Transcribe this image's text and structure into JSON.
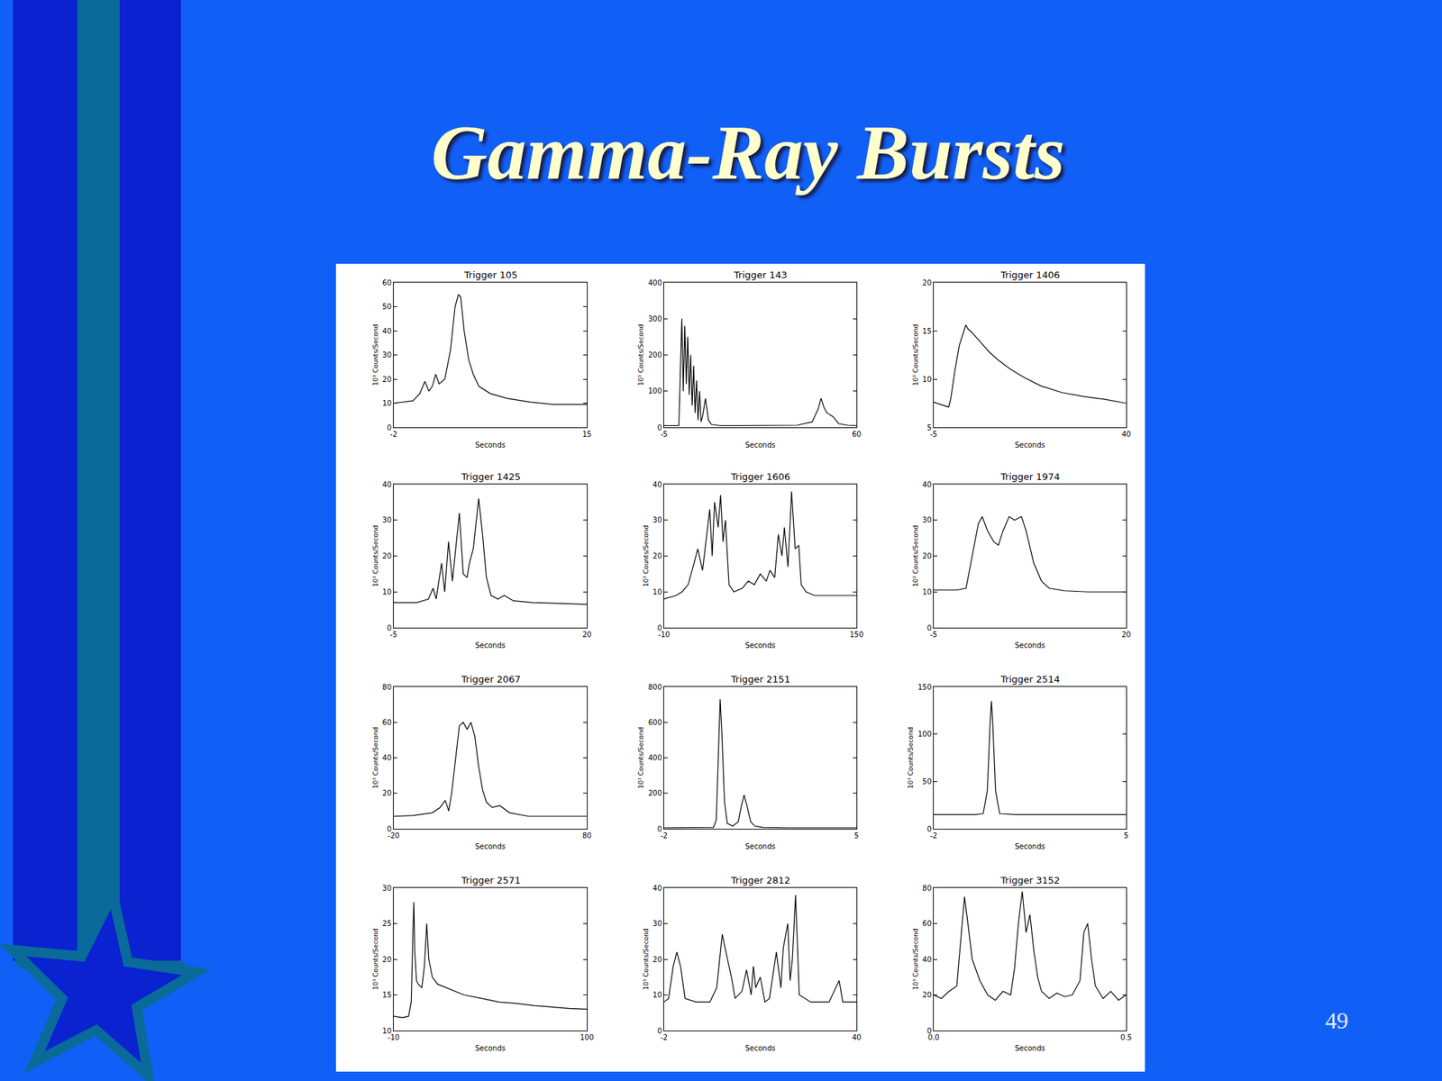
{
  "title": "Gamma-Ray Bursts",
  "page_number": "49",
  "chart_data": [
    {
      "type": "line",
      "title": "Trigger 105",
      "x_label": "Seconds",
      "y_label": "10³ Counts/Second",
      "x": [
        -2,
        -1,
        -0.3,
        0.3,
        0.75,
        1.1,
        1.4,
        1.7,
        2.0,
        2.5,
        3.0,
        3.4,
        3.7,
        3.9,
        4.2,
        4.6,
        5.0,
        5.5,
        6.5,
        8,
        10,
        12,
        15
      ],
      "values": [
        10,
        10.5,
        11,
        14,
        19,
        15,
        17,
        22,
        18,
        20,
        32,
        50,
        55,
        54,
        40,
        28,
        22,
        17,
        14,
        12,
        10.5,
        9.5,
        9.5
      ],
      "xlim": [
        -2,
        15
      ],
      "xticks": [
        -2,
        15
      ],
      "ylim": [
        0,
        60
      ],
      "yticks": [
        0,
        10,
        20,
        30,
        40,
        50,
        60
      ],
      "color": "#000000"
    },
    {
      "type": "line",
      "title": "Trigger 143",
      "x_label": "Seconds",
      "y_label": "10³ Counts/Second",
      "x": [
        -5,
        0,
        0.5,
        1,
        1.5,
        2,
        2.5,
        3,
        3.5,
        4,
        4.5,
        5,
        5.5,
        6,
        6.5,
        7,
        7.5,
        8,
        9,
        10,
        11,
        14,
        20,
        30,
        40,
        45,
        47,
        48,
        49,
        50,
        52,
        54,
        57,
        60
      ],
      "values": [
        5,
        5,
        150,
        300,
        100,
        280,
        120,
        250,
        90,
        200,
        60,
        170,
        40,
        130,
        20,
        100,
        15,
        30,
        80,
        20,
        8,
        5,
        5,
        5,
        6,
        15,
        50,
        80,
        55,
        40,
        30,
        10,
        6,
        5
      ],
      "xlim": [
        -5,
        60
      ],
      "xticks": [
        -5,
        60
      ],
      "ylim": [
        0,
        400
      ],
      "yticks": [
        0,
        100,
        200,
        300,
        400
      ],
      "color": "#000000"
    },
    {
      "type": "line",
      "title": "Trigger 1406",
      "x_label": "Seconds",
      "y_label": "10³ Counts/Second",
      "x": [
        -5,
        -3,
        -1.5,
        -1,
        0,
        1,
        2,
        2.5,
        3,
        4,
        6,
        8,
        10,
        13,
        16,
        20,
        25,
        30,
        35,
        40
      ],
      "values": [
        7.6,
        7.3,
        7.1,
        8,
        11,
        13.5,
        15,
        15.6,
        15.2,
        14.8,
        13.8,
        12.8,
        12,
        11,
        10.2,
        9.3,
        8.6,
        8.2,
        7.9,
        7.5
      ],
      "xlim": [
        -5,
        40
      ],
      "xticks": [
        -5,
        40
      ],
      "ylim": [
        5,
        20
      ],
      "yticks": [
        5,
        10,
        15,
        20
      ],
      "color": "#000000"
    },
    {
      "type": "line",
      "title": "Trigger 1425",
      "x_label": "Seconds",
      "y_label": "10³ Counts/Second",
      "x": [
        -5,
        -2,
        -0.5,
        0.1,
        0.5,
        1.2,
        1.6,
        2.1,
        2.6,
        3.5,
        4.0,
        4.5,
        4.8,
        5.3,
        6.0,
        6.5,
        7.0,
        7.6,
        8.5,
        9.3,
        10.5,
        13,
        16,
        20
      ],
      "values": [
        7,
        7,
        8,
        11,
        8,
        18,
        10,
        24,
        13,
        32,
        15,
        14,
        18,
        22,
        36,
        26,
        14,
        9,
        8,
        9,
        7.5,
        7,
        6.8,
        6.5
      ],
      "xlim": [
        -5,
        20
      ],
      "xticks": [
        -5,
        20
      ],
      "ylim": [
        0,
        40
      ],
      "yticks": [
        0,
        10,
        20,
        30,
        40
      ],
      "color": "#000000"
    },
    {
      "type": "line",
      "title": "Trigger 1606",
      "x_label": "Seconds",
      "y_label": "10³ Counts/Second",
      "x": [
        -10,
        0,
        5,
        10,
        15,
        18,
        22,
        25,
        28,
        30,
        32,
        35,
        37,
        39,
        41,
        44,
        48,
        55,
        60,
        65,
        70,
        75,
        78,
        82,
        85,
        88,
        90,
        93,
        96,
        99,
        102,
        104,
        108,
        115,
        125,
        140,
        150
      ],
      "values": [
        8,
        9,
        10,
        12,
        18,
        22,
        16,
        25,
        33,
        20,
        35,
        28,
        37,
        24,
        30,
        12,
        10,
        11,
        13,
        12,
        15,
        13,
        16,
        14,
        26,
        20,
        28,
        17,
        38,
        22,
        23,
        12,
        10,
        9,
        9,
        9,
        9
      ],
      "xlim": [
        -10,
        150
      ],
      "xticks": [
        -10,
        150
      ],
      "ylim": [
        0,
        40
      ],
      "yticks": [
        0,
        10,
        20,
        30,
        40
      ],
      "color": "#000000"
    },
    {
      "type": "line",
      "title": "Trigger 1974",
      "x_label": "Seconds",
      "y_label": "10³ Counts/Second",
      "x": [
        -5,
        -2,
        -0.8,
        0,
        0.8,
        1.3,
        2,
        2.8,
        3.4,
        4,
        4.8,
        5.5,
        6.4,
        7,
        8,
        9,
        10,
        12,
        15,
        20
      ],
      "values": [
        10.5,
        10.5,
        11,
        20,
        29,
        31,
        27,
        24,
        23,
        27,
        31,
        30,
        31,
        27,
        18,
        13,
        11,
        10.3,
        10,
        10
      ],
      "xlim": [
        -5,
        20
      ],
      "xticks": [
        -5,
        20
      ],
      "ylim": [
        0,
        40
      ],
      "yticks": [
        0,
        10,
        20,
        30,
        40
      ],
      "color": "#000000"
    },
    {
      "type": "line",
      "title": "Trigger 2067",
      "x_label": "Seconds",
      "y_label": "10³ Counts/Second",
      "x": [
        -20,
        -10,
        0,
        4,
        6.7,
        8.5,
        10,
        12,
        14,
        16,
        18,
        20,
        22,
        24,
        26,
        28,
        31,
        35,
        40,
        50,
        65,
        80
      ],
      "values": [
        7,
        7.5,
        9,
        12,
        16,
        10,
        20,
        40,
        58,
        60,
        56,
        60,
        52,
        35,
        22,
        15,
        12,
        13,
        9,
        7,
        7,
        7
      ],
      "xlim": [
        -20,
        80
      ],
      "xticks": [
        -20,
        80
      ],
      "ylim": [
        0,
        80
      ],
      "yticks": [
        0,
        20,
        40,
        60,
        80
      ],
      "color": "#000000"
    },
    {
      "type": "line",
      "title": "Trigger 2151",
      "x_label": "Seconds",
      "y_label": "10³ Counts/Second",
      "x": [
        -2,
        -0.5,
        -0.2,
        -0.1,
        0,
        0.04,
        0.1,
        0.2,
        0.3,
        0.5,
        0.7,
        0.8,
        0.91,
        1.0,
        1.15,
        1.3,
        1.6,
        2.5,
        5
      ],
      "values": [
        5,
        5,
        8,
        50,
        500,
        730,
        550,
        150,
        30,
        15,
        40,
        120,
        190,
        140,
        40,
        15,
        8,
        5,
        5
      ],
      "xlim": [
        -2,
        5
      ],
      "xticks": [
        -2,
        5
      ],
      "ylim": [
        0,
        800
      ],
      "yticks": [
        0,
        200,
        400,
        600,
        800
      ],
      "color": "#000000"
    },
    {
      "type": "line",
      "title": "Trigger 2514",
      "x_label": "Seconds",
      "y_label": "10³ Counts/Second",
      "x": [
        -2,
        -0.5,
        -0.2,
        -0.05,
        0.05,
        0.1,
        0.15,
        0.25,
        0.4,
        1,
        2,
        3,
        4,
        5
      ],
      "values": [
        15,
        15,
        16,
        40,
        110,
        135,
        110,
        40,
        16,
        15,
        15,
        15,
        14.5,
        15
      ],
      "xlim": [
        -2,
        5
      ],
      "xticks": [
        -2,
        5
      ],
      "ylim": [
        0,
        150
      ],
      "yticks": [
        0,
        50,
        100,
        150
      ],
      "color": "#000000"
    },
    {
      "type": "line",
      "title": "Trigger 2571",
      "x_label": "Seconds",
      "y_label": "10³ Counts/Second",
      "x": [
        -10,
        -5,
        -1.5,
        0,
        1,
        1.5,
        2,
        3,
        4,
        6,
        7.5,
        8.8,
        10,
        12,
        15,
        20,
        30,
        40,
        50,
        60,
        70,
        80,
        90,
        100
      ],
      "values": [
        12,
        11.8,
        12,
        14,
        24,
        28,
        21,
        17,
        16.5,
        16,
        19,
        25,
        20,
        17.5,
        16.5,
        16,
        15,
        14.5,
        14,
        13.8,
        13.5,
        13.3,
        13.1,
        13
      ],
      "xlim": [
        -10,
        100
      ],
      "xticks": [
        -10,
        100
      ],
      "ylim": [
        10,
        30
      ],
      "yticks": [
        10,
        15,
        20,
        25,
        30
      ],
      "color": "#000000"
    },
    {
      "type": "line",
      "title": "Trigger 2812",
      "x_label": "Seconds",
      "y_label": "10³ Counts/Second",
      "x": [
        -2,
        -1,
        0,
        0.8,
        1.6,
        2.6,
        5,
        8,
        9.5,
        10.7,
        11.5,
        12.7,
        13.5,
        15,
        16,
        17,
        17.5,
        18,
        19,
        20,
        21,
        22.5,
        23.5,
        24,
        25,
        25.5,
        26,
        26.7,
        27.5,
        30,
        34,
        36.2,
        37,
        40
      ],
      "values": [
        8,
        9,
        18,
        22,
        18,
        9,
        8,
        8,
        12,
        27,
        22,
        15,
        9,
        11,
        17,
        10,
        18,
        12,
        15,
        8,
        9,
        22,
        12,
        23,
        30,
        14,
        20,
        38,
        10,
        8,
        8,
        14,
        8,
        8
      ],
      "xlim": [
        -2,
        40
      ],
      "xticks": [
        -2,
        40
      ],
      "ylim": [
        0,
        40
      ],
      "yticks": [
        0,
        10,
        20,
        30,
        40
      ],
      "color": "#000000"
    },
    {
      "type": "line",
      "title": "Trigger 3152",
      "x_label": "Seconds",
      "y_label": "10³ Counts/Second",
      "x": [
        0,
        0.02,
        0.04,
        0.06,
        0.07,
        0.08,
        0.09,
        0.1,
        0.12,
        0.14,
        0.16,
        0.18,
        0.2,
        0.21,
        0.22,
        0.23,
        0.24,
        0.25,
        0.26,
        0.27,
        0.28,
        0.3,
        0.32,
        0.34,
        0.36,
        0.38,
        0.39,
        0.4,
        0.41,
        0.42,
        0.44,
        0.46,
        0.48,
        0.5
      ],
      "values": [
        20,
        18,
        22,
        25,
        50,
        75,
        58,
        40,
        28,
        20,
        17,
        22,
        20,
        35,
        60,
        78,
        55,
        65,
        45,
        30,
        22,
        18,
        21,
        19,
        20,
        28,
        55,
        60,
        40,
        25,
        18,
        22,
        17,
        20
      ],
      "xlim": [
        0,
        0.5
      ],
      "xticks": [
        {
          "value": 0,
          "label": "0.0"
        },
        {
          "value": 0.5,
          "label": "0.5"
        }
      ],
      "ylim": [
        0,
        80
      ],
      "yticks": [
        0,
        20,
        40,
        60,
        80
      ],
      "color": "#000000"
    }
  ]
}
